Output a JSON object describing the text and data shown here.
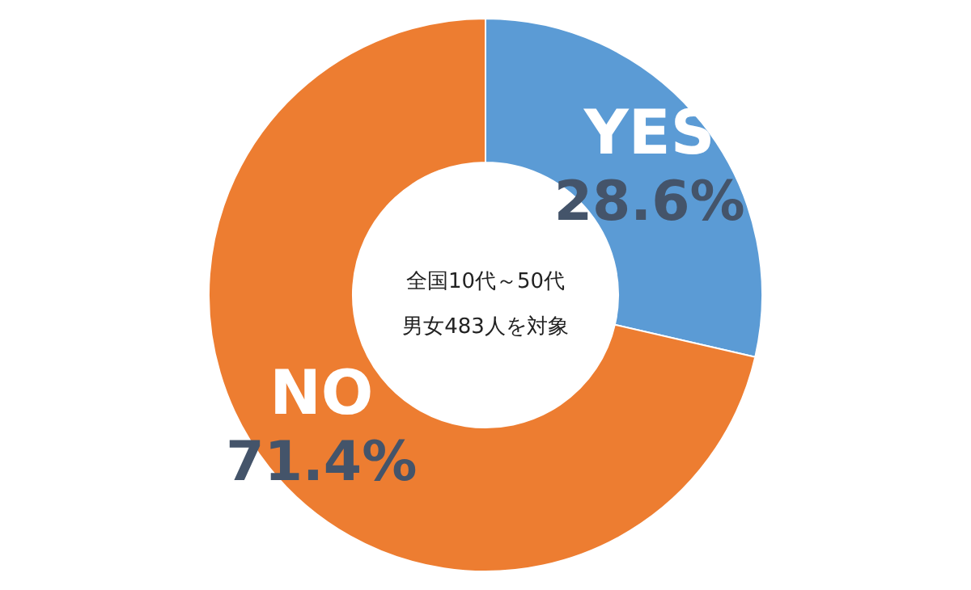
{
  "chart_data": {
    "type": "donut",
    "categories": [
      "YES",
      "NO"
    ],
    "values": [
      28.6,
      71.4
    ],
    "value_labels": [
      "28.6%",
      "71.4%"
    ],
    "colors": [
      "#5b9bd5",
      "#ed7d31"
    ],
    "legend": false,
    "annotations": [
      "全国10代～50代",
      "男女483人を対象"
    ]
  }
}
